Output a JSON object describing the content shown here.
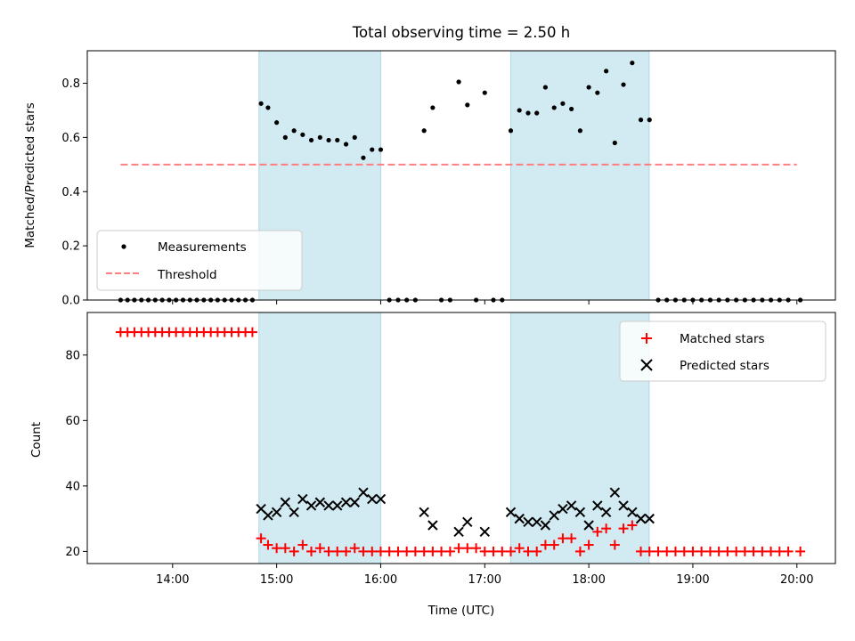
{
  "chart_data": {
    "type": "scatter",
    "title": "Total observing time = 2.50 h",
    "xlabel": "Time (UTC)",
    "x_ticks": [
      "14:00",
      "15:00",
      "16:00",
      "17:00",
      "18:00",
      "19:00",
      "20:00"
    ],
    "xlim_hours": [
      13.18,
      20.37
    ],
    "shaded_intervals_hours": [
      [
        14.83,
        16.0
      ],
      [
        17.25,
        18.58
      ]
    ],
    "colors": {
      "measurements": "#000000",
      "threshold": "#ff7f7f",
      "matched": "#ff0000",
      "predicted": "#000000",
      "shade": "#add8e6"
    },
    "panels": [
      {
        "ylabel": "Matched/Predicted stars",
        "ylim": [
          0,
          0.92
        ],
        "y_ticks": [
          "0.0",
          "0.2",
          "0.4",
          "0.6",
          "0.8"
        ],
        "legend": {
          "position": "lower-left",
          "entries": [
            "Measurements",
            "Threshold"
          ]
        },
        "series": [
          {
            "name": "Measurements",
            "marker": "dot",
            "x": [
              13.5,
              13.567,
              13.633,
              13.7,
              13.767,
              13.833,
              13.9,
              13.967,
              14.033,
              14.1,
              14.167,
              14.233,
              14.3,
              14.367,
              14.433,
              14.5,
              14.567,
              14.633,
              14.7,
              14.767,
              14.85,
              14.917,
              15.0,
              15.083,
              15.167,
              15.25,
              15.333,
              15.417,
              15.5,
              15.583,
              15.667,
              15.75,
              15.833,
              15.917,
              16.0,
              16.083,
              16.167,
              16.25,
              16.333,
              16.417,
              16.5,
              16.583,
              16.667,
              16.75,
              16.833,
              16.917,
              17.0,
              17.083,
              17.167,
              17.25,
              17.333,
              17.417,
              17.5,
              17.583,
              17.667,
              17.75,
              17.833,
              17.917,
              18.0,
              18.083,
              18.167,
              18.25,
              18.333,
              18.417,
              18.5,
              18.583,
              18.667,
              18.75,
              18.833,
              18.917,
              19.0,
              19.083,
              19.167,
              19.25,
              19.333,
              19.417,
              19.5,
              19.583,
              19.667,
              19.75,
              19.833,
              19.917,
              20.033
            ],
            "y": [
              0,
              0,
              0,
              0,
              0,
              0,
              0,
              0,
              0,
              0,
              0,
              0,
              0,
              0,
              0,
              0,
              0,
              0,
              0,
              0,
              0.725,
              0.71,
              0.655,
              0.6,
              0.625,
              0.61,
              0.59,
              0.6,
              0.59,
              0.59,
              0.575,
              0.6,
              0.525,
              0.555,
              0.555,
              0,
              0,
              0,
              0,
              0.625,
              0.71,
              0,
              0,
              0.805,
              0.72,
              0,
              0.765,
              0,
              0,
              0.625,
              0.7,
              0.69,
              0.69,
              0.785,
              0.71,
              0.725,
              0.705,
              0.625,
              0.785,
              0.765,
              0.845,
              0.58,
              0.795,
              0.875,
              0.665,
              0.665,
              0,
              0,
              0,
              0,
              0,
              0,
              0,
              0,
              0,
              0,
              0,
              0,
              0,
              0,
              0,
              0,
              0
            ]
          },
          {
            "name": "Threshold",
            "style": "dashed",
            "x": [
              13.5,
              20.0
            ],
            "y": [
              0.5,
              0.5
            ]
          }
        ]
      },
      {
        "ylabel": "Count",
        "ylim": [
          16.3,
          93.0
        ],
        "y_ticks": [
          "20",
          "40",
          "60",
          "80"
        ],
        "legend": {
          "position": "upper-right",
          "entries": [
            "Matched stars",
            "Predicted stars"
          ]
        },
        "series": [
          {
            "name": "Matched stars",
            "marker": "plus",
            "x": [
              13.5,
              13.567,
              13.633,
              13.7,
              13.767,
              13.833,
              13.9,
              13.967,
              14.033,
              14.1,
              14.167,
              14.233,
              14.3,
              14.367,
              14.433,
              14.5,
              14.567,
              14.633,
              14.7,
              14.767,
              14.85,
              14.917,
              15.0,
              15.083,
              15.167,
              15.25,
              15.333,
              15.417,
              15.5,
              15.583,
              15.667,
              15.75,
              15.833,
              15.917,
              16.0,
              16.083,
              16.167,
              16.25,
              16.333,
              16.417,
              16.5,
              16.583,
              16.667,
              16.75,
              16.833,
              16.917,
              17.0,
              17.083,
              17.167,
              17.25,
              17.333,
              17.417,
              17.5,
              17.583,
              17.667,
              17.75,
              17.833,
              17.917,
              18.0,
              18.083,
              18.167,
              18.25,
              18.333,
              18.417,
              18.5,
              18.583,
              18.667,
              18.75,
              18.833,
              18.917,
              19.0,
              19.083,
              19.167,
              19.25,
              19.333,
              19.417,
              19.5,
              19.583,
              19.667,
              19.75,
              19.833,
              19.917,
              20.033
            ],
            "y": [
              87,
              87,
              87,
              87,
              87,
              87,
              87,
              87,
              87,
              87,
              87,
              87,
              87,
              87,
              87,
              87,
              87,
              87,
              87,
              87,
              24,
              22,
              21,
              21,
              20,
              22,
              20,
              21,
              20,
              20,
              20,
              21,
              20,
              20,
              20,
              20,
              20,
              20,
              20,
              20,
              20,
              20,
              20,
              21,
              21,
              21,
              20,
              20,
              20,
              20,
              21,
              20,
              20,
              22,
              22,
              24,
              24,
              20,
              22,
              26,
              27,
              22,
              27,
              28,
              20,
              20,
              20,
              20,
              20,
              20,
              20,
              20,
              20,
              20,
              20,
              20,
              20,
              20,
              20,
              20,
              20,
              20,
              20
            ]
          },
          {
            "name": "Predicted stars",
            "marker": "x",
            "x": [
              14.85,
              14.917,
              15.0,
              15.083,
              15.167,
              15.25,
              15.333,
              15.417,
              15.5,
              15.583,
              15.667,
              15.75,
              15.833,
              15.917,
              16.0,
              16.417,
              16.5,
              16.75,
              16.833,
              17.0,
              17.25,
              17.333,
              17.417,
              17.5,
              17.583,
              17.667,
              17.75,
              17.833,
              17.917,
              18.0,
              18.083,
              18.167,
              18.25,
              18.333,
              18.417,
              18.5,
              18.583
            ],
            "y": [
              33,
              31,
              32,
              35,
              32,
              36,
              34,
              35,
              34,
              34,
              35,
              35,
              38,
              36,
              36,
              32,
              28,
              26,
              29,
              26,
              32,
              30,
              29,
              29,
              28,
              31,
              33,
              34,
              32,
              28,
              34,
              32,
              38,
              34,
              32,
              30,
              30
            ]
          }
        ]
      }
    ]
  }
}
